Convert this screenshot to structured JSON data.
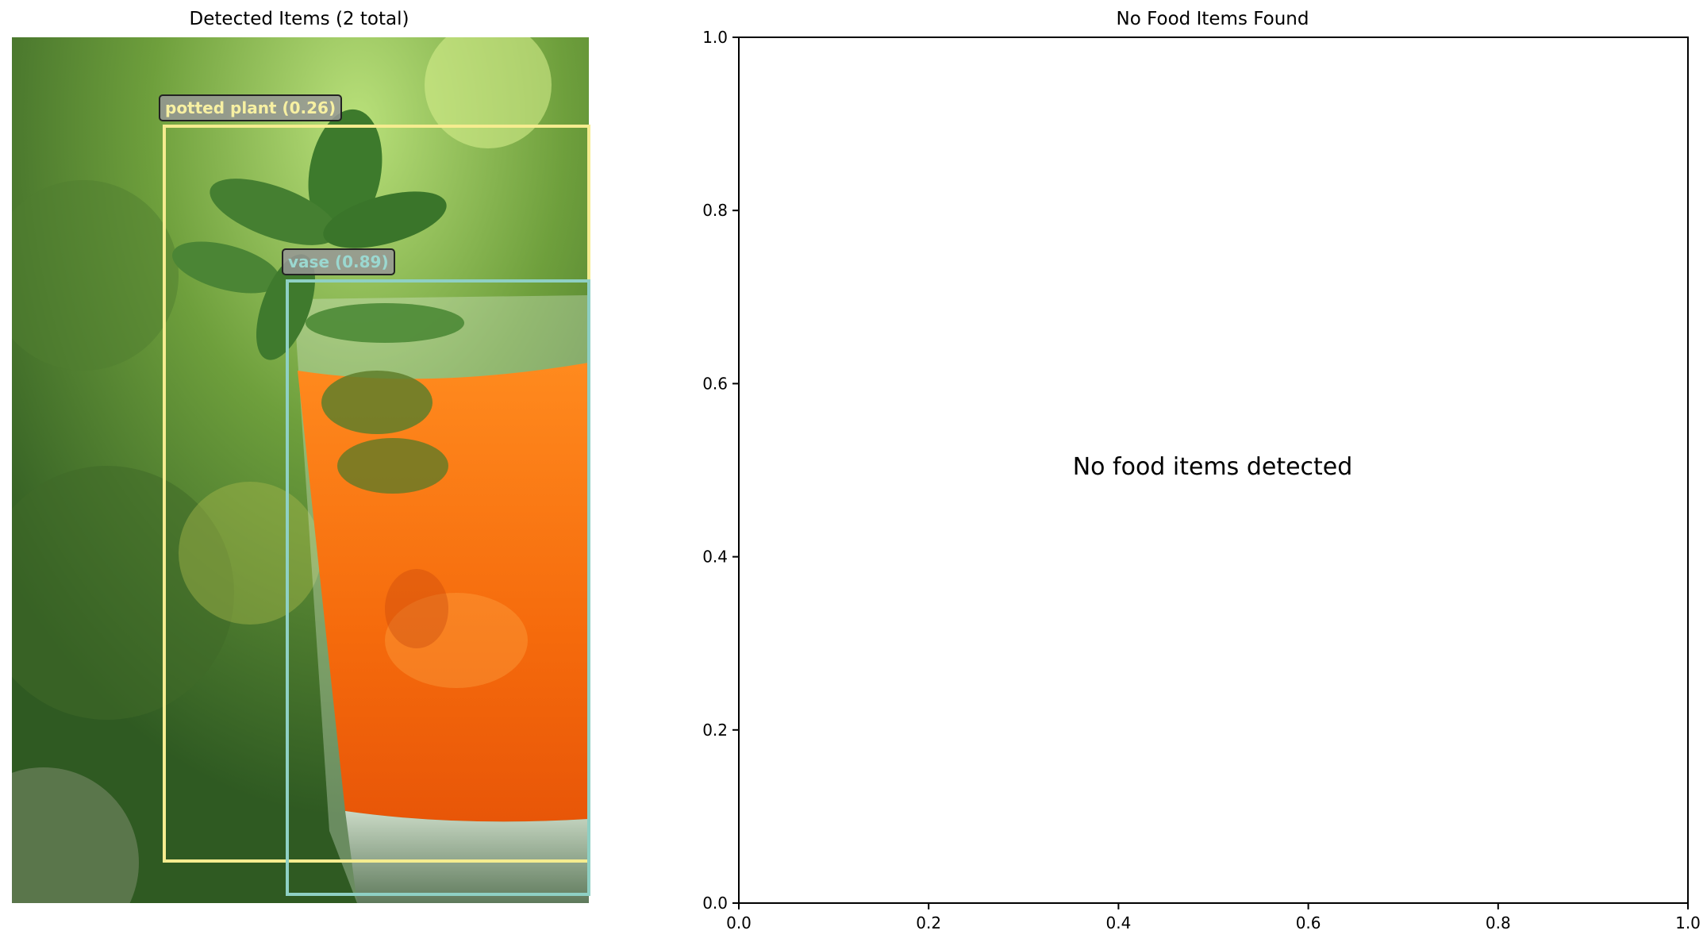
{
  "detections_panel": {
    "title": "Detected Items (2 total)",
    "detections": [
      {
        "label": "potted plant (0.26)",
        "color": "#f5ec8f"
      },
      {
        "label": "vase (0.89)",
        "color": "#8fd0c4"
      }
    ]
  },
  "chart_data": {
    "type": "scatter",
    "title": "No Food Items Found",
    "xlabel": "",
    "ylabel": "",
    "xlim": [
      0.0,
      1.0
    ],
    "ylim": [
      0.0,
      1.0
    ],
    "xticks": [
      "0.0",
      "0.2",
      "0.4",
      "0.6",
      "0.8",
      "1.0"
    ],
    "yticks": [
      "0.0",
      "0.2",
      "0.4",
      "0.6",
      "0.8",
      "1.0"
    ],
    "grid": false,
    "series": [],
    "annotation": "No food items detected"
  }
}
